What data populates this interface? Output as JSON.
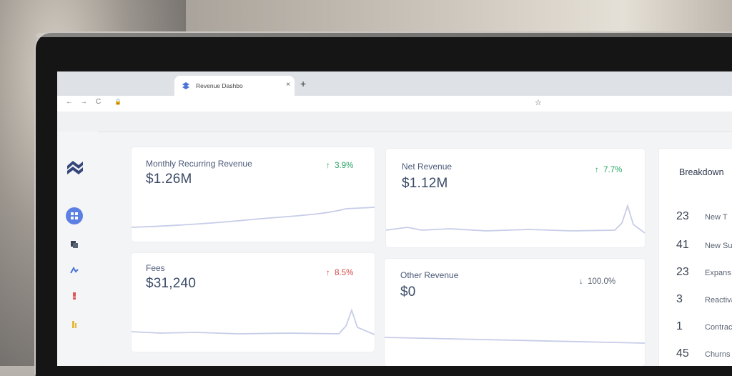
{
  "browser": {
    "tab_title": "Revenue Dashbo",
    "tab_close": "×",
    "new_tab": "+",
    "back": "←",
    "forward": "→",
    "reload": "C",
    "lock": "🔒",
    "star": "☆"
  },
  "cards": {
    "mrr": {
      "title": "Monthly Recurring Revenue",
      "value": "$1.26M",
      "delta": "3.9%",
      "arrow": "↑"
    },
    "net": {
      "title": "Net Revenue",
      "value": "$1.12M",
      "delta": "7.7%",
      "arrow": "↑"
    },
    "fees": {
      "title": "Fees",
      "value": "$31,240",
      "delta": "8.5%",
      "arrow": "↑"
    },
    "other": {
      "title": "Other Revenue",
      "value": "$0",
      "delta": "100.0%",
      "arrow": "↓"
    }
  },
  "breakdown": {
    "title": "Breakdown",
    "rows": [
      {
        "num": "23",
        "label": "New T"
      },
      {
        "num": "41",
        "label": "New Su"
      },
      {
        "num": "23",
        "label": "Expans"
      },
      {
        "num": "3",
        "label": "Reactivati"
      },
      {
        "num": "1",
        "label": "Contractio"
      },
      {
        "num": "45",
        "label": "Churns"
      }
    ]
  },
  "colors": {
    "accent": "#5b7fe3",
    "up": "#2aa566",
    "down": "#d94a4a"
  }
}
